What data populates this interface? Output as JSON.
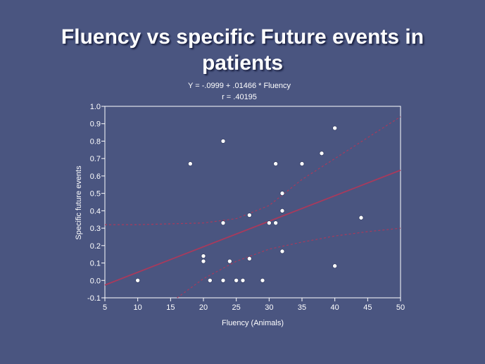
{
  "slide": {
    "title_line1": "Fluency vs specific Future events in",
    "title_line2": "patients"
  },
  "chart_data": {
    "type": "scatter",
    "equation": "Y = -.0999 + .01466 * Fluency",
    "r_label": "r = .40195",
    "xlabel": "Fluency (Animals)",
    "ylabel": "Specific future events",
    "xlim": [
      5,
      50
    ],
    "ylim": [
      -0.1,
      1.0
    ],
    "x_ticks": [
      5,
      10,
      15,
      20,
      25,
      30,
      35,
      40,
      45,
      50
    ],
    "y_ticks": [
      -0.1,
      0.0,
      0.1,
      0.2,
      0.3,
      0.4,
      0.5,
      0.6,
      0.7,
      0.8,
      0.9,
      1.0
    ],
    "y_tick_labels": [
      "-0.1",
      "0.0",
      "0.1",
      "0.2",
      "0.3",
      "0.4",
      "0.5",
      "0.6",
      "0.7",
      "0.8",
      "0.9",
      "1.0"
    ],
    "regression": {
      "intercept": -0.0999,
      "slope": 0.01466
    },
    "confidence_upper": [
      {
        "x": 5,
        "y": 0.32
      },
      {
        "x": 10,
        "y": 0.32
      },
      {
        "x": 15,
        "y": 0.325
      },
      {
        "x": 20,
        "y": 0.33
      },
      {
        "x": 25,
        "y": 0.355
      },
      {
        "x": 30,
        "y": 0.43
      },
      {
        "x": 35,
        "y": 0.58
      },
      {
        "x": 40,
        "y": 0.7
      },
      {
        "x": 45,
        "y": 0.82
      },
      {
        "x": 50,
        "y": 0.94
      }
    ],
    "confidence_lower": [
      {
        "x": 16,
        "y": -0.1
      },
      {
        "x": 20,
        "y": 0.01
      },
      {
        "x": 25,
        "y": 0.11
      },
      {
        "x": 30,
        "y": 0.18
      },
      {
        "x": 35,
        "y": 0.22
      },
      {
        "x": 40,
        "y": 0.255
      },
      {
        "x": 45,
        "y": 0.28
      },
      {
        "x": 50,
        "y": 0.3
      }
    ],
    "points": [
      {
        "x": 10,
        "y": 0.0
      },
      {
        "x": 18,
        "y": 0.67
      },
      {
        "x": 20,
        "y": 0.14
      },
      {
        "x": 20,
        "y": 0.11
      },
      {
        "x": 21,
        "y": 0.0
      },
      {
        "x": 23,
        "y": 0.8
      },
      {
        "x": 23,
        "y": 0.33
      },
      {
        "x": 23,
        "y": 0.0
      },
      {
        "x": 24,
        "y": 0.11
      },
      {
        "x": 25,
        "y": 0.0
      },
      {
        "x": 26,
        "y": 0.0
      },
      {
        "x": 27,
        "y": 0.375
      },
      {
        "x": 27,
        "y": 0.125
      },
      {
        "x": 29,
        "y": 0.0
      },
      {
        "x": 30,
        "y": 0.33
      },
      {
        "x": 31,
        "y": 0.67
      },
      {
        "x": 31,
        "y": 0.33
      },
      {
        "x": 32,
        "y": 0.5
      },
      {
        "x": 32,
        "y": 0.4
      },
      {
        "x": 32,
        "y": 0.167
      },
      {
        "x": 35,
        "y": 0.67
      },
      {
        "x": 38,
        "y": 0.73
      },
      {
        "x": 40,
        "y": 0.875
      },
      {
        "x": 40,
        "y": 0.083
      },
      {
        "x": 44,
        "y": 0.36
      }
    ],
    "colors": {
      "background": "#4a5580",
      "axis": "#ffffff",
      "point": "#ffffff",
      "regression_line": "#a83a5c",
      "confidence_band": "#a83a5c"
    }
  }
}
